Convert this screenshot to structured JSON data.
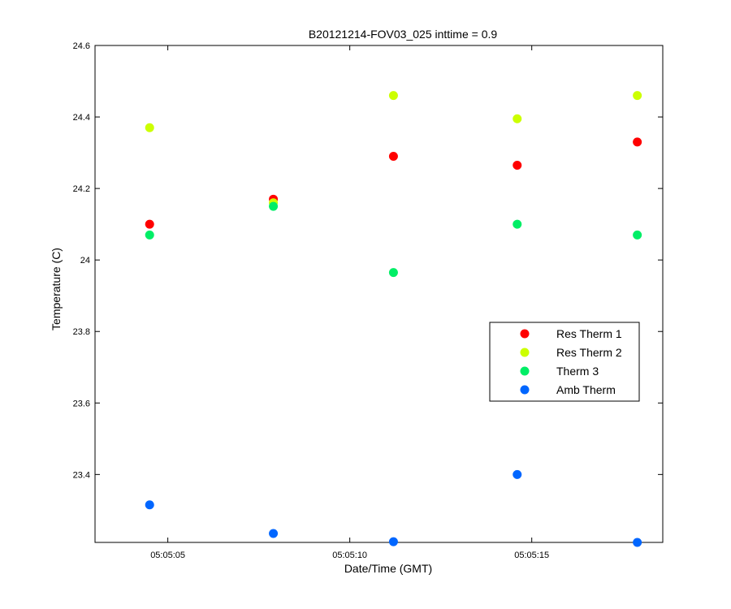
{
  "chart_data": {
    "type": "scatter",
    "title": "B20121214-FOV03_025 inttime = 0.9",
    "xlabel": "Date/Time (GMT)",
    "ylabel": "Temperature (C)",
    "x_ticks": [
      {
        "value": 5.0,
        "label": "05:05:05"
      },
      {
        "value": 10.0,
        "label": "05:05:10"
      },
      {
        "value": 15.0,
        "label": "05:05:15"
      }
    ],
    "y_ticks": [
      {
        "value": 23.4,
        "label": "23.4"
      },
      {
        "value": 23.6,
        "label": "23.6"
      },
      {
        "value": 23.8,
        "label": "23.8"
      },
      {
        "value": 24.0,
        "label": "24"
      },
      {
        "value": 24.2,
        "label": "24.2"
      },
      {
        "value": 24.4,
        "label": "24.4"
      },
      {
        "value": 24.6,
        "label": "24.6"
      }
    ],
    "xlim": [
      3.0,
      18.6
    ],
    "ylim": [
      23.21,
      24.6
    ],
    "grid": false,
    "legend_position": "right",
    "x": [
      4.5,
      7.9,
      11.2,
      14.6,
      17.9
    ],
    "series": [
      {
        "name": "Res Therm 1",
        "color": "#ff0000",
        "values": [
          24.1,
          24.17,
          24.29,
          24.265,
          24.33
        ]
      },
      {
        "name": "Res Therm 2",
        "color": "#ccff00",
        "values": [
          24.37,
          24.16,
          24.46,
          24.395,
          24.46
        ]
      },
      {
        "name": "Therm 3",
        "color": "#00ee66",
        "values": [
          24.07,
          24.15,
          23.965,
          24.1,
          24.07
        ]
      },
      {
        "name": "Amb Therm",
        "color": "#0066ff",
        "values": [
          23.315,
          23.235,
          23.212,
          23.4,
          23.21
        ]
      }
    ]
  }
}
